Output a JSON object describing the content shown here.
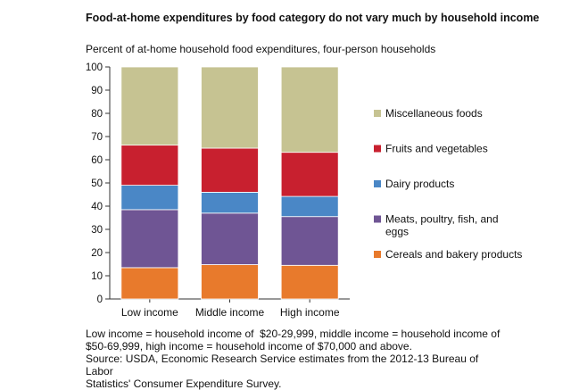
{
  "title": "Food-at-home expenditures by food category do not vary much by household income",
  "subtitle": "Percent of at-home household food expenditures, four-person households",
  "notes": [
    "Low income = household income of  $20-29,999, middle income = household income of",
    "$50-69,999, high income = household income of $70,000 and above.",
    "Source: USDA, Economic Research Service estimates from the 2012-13 Bureau of Labor",
    "Statistics' Consumer Expenditure Survey."
  ],
  "chart_data": {
    "type": "bar",
    "stacked": true,
    "categories": [
      "Low income",
      "Middle income",
      "High income"
    ],
    "ylim": [
      0,
      100
    ],
    "yticks": [
      0,
      10,
      20,
      30,
      40,
      50,
      60,
      70,
      80,
      90,
      100
    ],
    "grid": false,
    "legend_position": "right",
    "series": [
      {
        "name": "Cereals and bakery products",
        "color": "#e87a2c",
        "values": [
          13.5,
          14.8,
          14.5
        ]
      },
      {
        "name": "Meats, poultry, fish, and eggs",
        "color": "#6f5594",
        "values": [
          25.0,
          22.2,
          21.0
        ]
      },
      {
        "name": "Dairy products",
        "color": "#4a87c6",
        "values": [
          10.5,
          9.0,
          8.7
        ]
      },
      {
        "name": "Fruits and vegetables",
        "color": "#c8202f",
        "values": [
          17.3,
          19.0,
          19.0
        ]
      },
      {
        "name": "Miscellaneous foods",
        "color": "#c6c392",
        "values": [
          33.7,
          35.0,
          36.8
        ]
      }
    ]
  }
}
